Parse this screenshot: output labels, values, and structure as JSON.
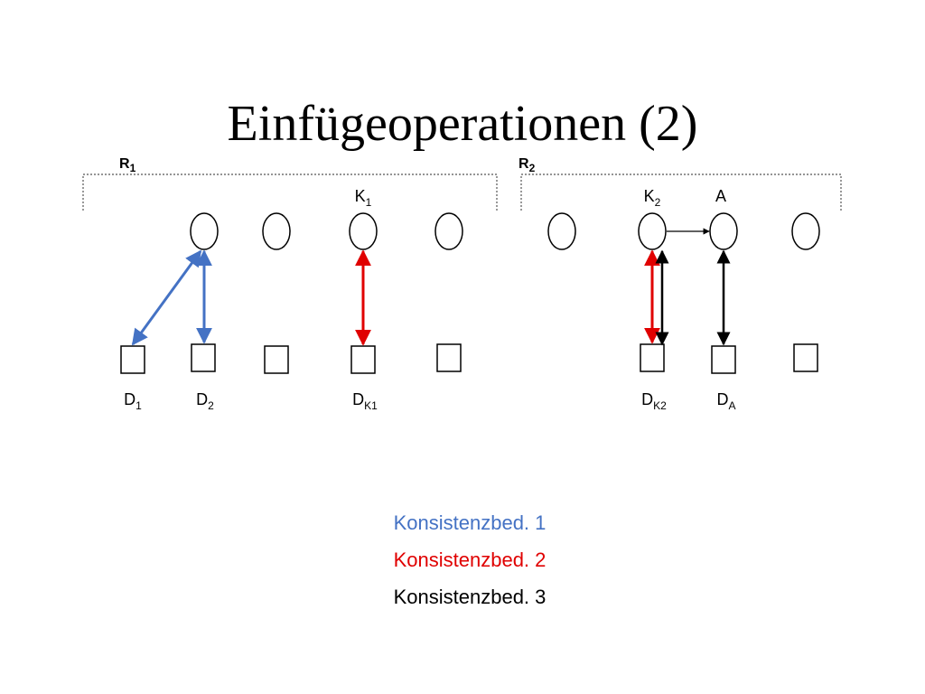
{
  "title": "Einfügeoperationen (2)",
  "regions": [
    {
      "base": "R",
      "sub": "1"
    },
    {
      "base": "R",
      "sub": "2"
    }
  ],
  "node_labels": [
    {
      "base": "K",
      "sub": "1"
    },
    {
      "base": "K",
      "sub": "2"
    },
    {
      "base": "A"
    }
  ],
  "data_labels": [
    {
      "base": "D",
      "sub": "1"
    },
    {
      "base": "D",
      "sub": "2"
    },
    {
      "base": "D",
      "sub": "K1"
    },
    {
      "base": "D",
      "sub": "K2"
    },
    {
      "base": "D",
      "sub": "A"
    }
  ],
  "legend": [
    "Konsistenzbed. 1",
    "Konsistenzbed. 2",
    "Konsistenzbed. 3"
  ]
}
